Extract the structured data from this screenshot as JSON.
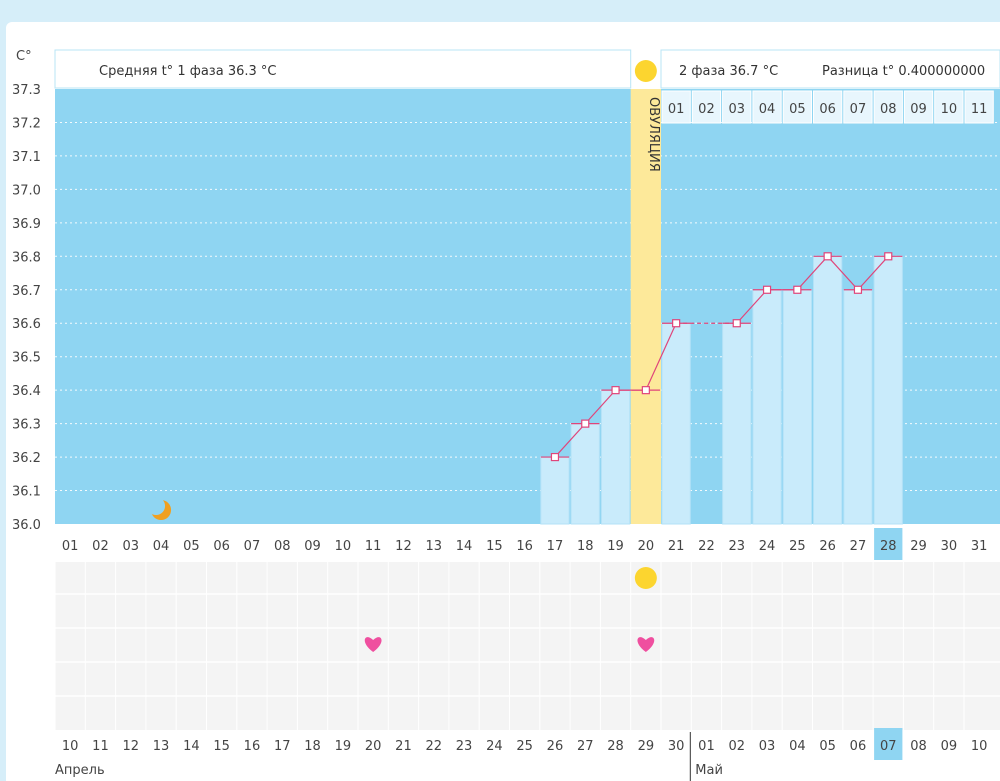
{
  "chart_data": {
    "type": "line",
    "y_unit": "C°",
    "ylim": [
      36.0,
      37.3
    ],
    "y_ticks": [
      "37.3",
      "37.2",
      "37.1",
      "37.0",
      "36.9",
      "36.8",
      "36.7",
      "36.6",
      "36.5",
      "36.4",
      "36.3",
      "36.2",
      "36.1",
      "36.0"
    ],
    "x_day_labels": [
      "01",
      "02",
      "03",
      "04",
      "05",
      "06",
      "07",
      "08",
      "09",
      "10",
      "11",
      "12",
      "13",
      "14",
      "15",
      "16",
      "17",
      "18",
      "19",
      "20",
      "21",
      "22",
      "23",
      "24",
      "25",
      "26",
      "27",
      "28",
      "29",
      "30",
      "31"
    ],
    "highlight_day": "28",
    "cycle_days": [
      "01",
      "02",
      "03",
      "04",
      "05",
      "06",
      "07",
      "08",
      "09",
      "10",
      "11"
    ],
    "series": [
      {
        "days": [
          17,
          18,
          19,
          20,
          21,
          23,
          24,
          25,
          26,
          27,
          28
        ],
        "values": [
          36.2,
          36.3,
          36.4,
          36.4,
          36.6,
          36.6,
          36.7,
          36.7,
          36.8,
          36.7,
          36.8
        ]
      }
    ],
    "gap_dashed": [
      21,
      23
    ],
    "ovulation_day": 20,
    "ovulation_label": "ОВУЛЯЦИЯ",
    "header": {
      "phase1": "Средняя t° 1 фаза 36.3 °C",
      "phase2": "2 фаза 36.7 °C",
      "diff": "Разница t° 0.400000000"
    },
    "moon_day": 4,
    "sun_day": 20,
    "heart_days": [
      11,
      20
    ],
    "dates_row": [
      "10",
      "11",
      "12",
      "13",
      "14",
      "15",
      "16",
      "17",
      "18",
      "19",
      "20",
      "21",
      "22",
      "23",
      "24",
      "25",
      "26",
      "27",
      "28",
      "29",
      "30",
      "01",
      "02",
      "03",
      "04",
      "05",
      "06",
      "07",
      "08",
      "09",
      "10"
    ],
    "dates_red_index": [
      3,
      4,
      10,
      11,
      17,
      18,
      24,
      25
    ],
    "dates_highlight_index": 27,
    "month_labels": [
      "Апрель",
      "Май"
    ],
    "colors": {
      "plot_bg": "#8fd5f2",
      "bar_fill": "#c9ebfb",
      "ovulation": "#fde99a",
      "line": "#e0457a",
      "sun": "#fcd52f",
      "moon": "#f0a020",
      "heart": "#ef4f9f",
      "red_text": "#e03060",
      "highlight": "#8fd5f2"
    }
  }
}
